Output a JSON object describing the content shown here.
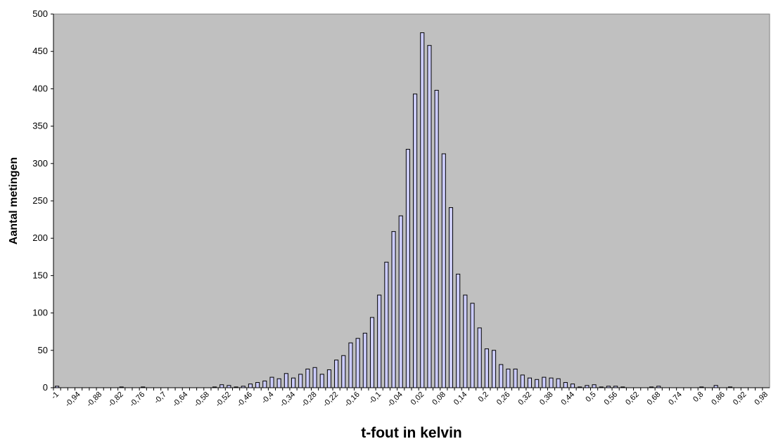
{
  "chart_data": {
    "type": "bar",
    "y_label": "Aantal metingen",
    "x_label": "t-fout in kelvin",
    "categories": [
      "-1",
      null,
      null,
      "-0,94",
      null,
      null,
      "-0,88",
      null,
      null,
      "-0,82",
      null,
      null,
      "-0,76",
      null,
      null,
      "-0,7",
      null,
      null,
      "-0,64",
      null,
      null,
      "-0,58",
      null,
      null,
      "-0,52",
      null,
      null,
      "-0,46",
      null,
      null,
      "-0,4",
      null,
      null,
      "-0,34",
      null,
      null,
      "-0,28",
      null,
      null,
      "-0,22",
      null,
      null,
      "-0,16",
      null,
      null,
      "-0,1",
      null,
      null,
      "-0,04",
      null,
      null,
      "0,02",
      null,
      null,
      "0,08",
      null,
      null,
      "0,14",
      null,
      null,
      "0,2",
      null,
      null,
      "0,26",
      null,
      null,
      "0,32",
      null,
      null,
      "0,38",
      null,
      null,
      "0,44",
      null,
      null,
      "0,5",
      null,
      null,
      "0,56",
      null,
      null,
      "0,62",
      null,
      null,
      "0,68",
      null,
      null,
      "0,74",
      null,
      null,
      "0,8",
      null,
      null,
      "0,86",
      null,
      null,
      "0,92",
      null,
      null,
      "0,98"
    ],
    "values": [
      2,
      0,
      0,
      0,
      0,
      0,
      0,
      0,
      0,
      1,
      0,
      0,
      1,
      0,
      0,
      0,
      0,
      0,
      0,
      0,
      0,
      0,
      1,
      4,
      3,
      1,
      2,
      5,
      7,
      9,
      14,
      12,
      19,
      13,
      18,
      25,
      27,
      18,
      24,
      37,
      43,
      60,
      66,
      73,
      94,
      124,
      168,
      209,
      230,
      319,
      393,
      475,
      458,
      398,
      313,
      241,
      152,
      124,
      113,
      80,
      52,
      50,
      31,
      25,
      25,
      17,
      13,
      11,
      14,
      13,
      12,
      7,
      5,
      1,
      3,
      4,
      1,
      2,
      2,
      1,
      0,
      0,
      0,
      1,
      2,
      0,
      0,
      0,
      0,
      0,
      1,
      0,
      3,
      0,
      1,
      0,
      0,
      0,
      0,
      0
    ],
    "color": "#ccccff",
    "plot_background": "#c0c0c0",
    "ylim": [
      0,
      500
    ],
    "yticks": [
      0,
      50,
      100,
      150,
      200,
      250,
      300,
      350,
      400,
      450,
      500
    ],
    "grid": false
  }
}
